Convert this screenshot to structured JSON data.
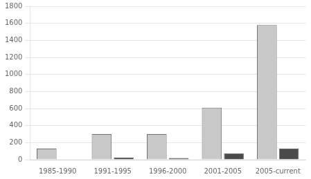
{
  "chart_data": {
    "type": "bar",
    "categories": [
      "1985-1990",
      "1991-1995",
      "1996-2000",
      "2001-2005",
      "2005-current"
    ],
    "series": [
      {
        "color": "#c8c8c8",
        "values": [
          130,
          300,
          300,
          610,
          1580
        ]
      },
      {
        "color": "#4a4a4a",
        "values": [
          5,
          25,
          20,
          75,
          130
        ]
      }
    ],
    "ylim": [
      0,
      1800
    ],
    "yticks": [
      0,
      200,
      400,
      600,
      800,
      1000,
      1200,
      1400,
      1600,
      1800
    ],
    "grid": true
  }
}
